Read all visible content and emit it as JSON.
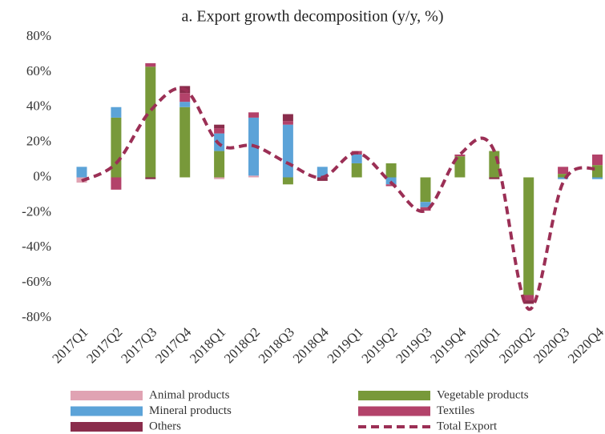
{
  "chart_data": {
    "type": "bar",
    "stacked": true,
    "title": "a. Export growth decomposition (y/y, %)",
    "categories": [
      "2017Q1",
      "2017Q2",
      "2017Q3",
      "2017Q4",
      "2018Q1",
      "2018Q2",
      "2018Q3",
      "2018Q4",
      "2019Q1",
      "2019Q2",
      "2019Q3",
      "2019Q4",
      "2020Q1",
      "2020Q2",
      "2020Q3",
      "2020Q4"
    ],
    "series": [
      {
        "name": "Animal products",
        "color": "#e0a3b3",
        "values": [
          -3,
          0,
          0,
          0,
          -1,
          1,
          0,
          0,
          0,
          0,
          0,
          0,
          0,
          0,
          0,
          0
        ]
      },
      {
        "name": "Vegetable products",
        "color": "#78993a",
        "values": [
          0,
          34,
          63,
          40,
          15,
          0,
          -4,
          0,
          8,
          8,
          -14,
          12,
          15,
          -67,
          2,
          7
        ]
      },
      {
        "name": "Mineral products",
        "color": "#5ca3d8",
        "values": [
          6,
          6,
          0,
          3,
          10,
          33,
          30,
          6,
          5,
          -4,
          -3,
          0,
          0,
          0,
          -1,
          -1
        ]
      },
      {
        "name": "Textiles",
        "color": "#b3426a",
        "values": [
          0,
          -7,
          2,
          5,
          3,
          3,
          2,
          0,
          2,
          -1,
          -2,
          1,
          0,
          -3,
          4,
          6
        ]
      },
      {
        "name": "Others",
        "color": "#8a2d4c",
        "values": [
          0,
          0,
          -1,
          4,
          2,
          0,
          4,
          -2,
          0,
          0,
          0,
          0,
          -1,
          -2,
          0,
          0
        ]
      },
      {
        "name": "Total Export",
        "type": "line",
        "dashed": true,
        "color": "#9b2f55",
        "values": [
          -2,
          8,
          38,
          50,
          19,
          18,
          8,
          0,
          14,
          -3,
          -19,
          13,
          15,
          -75,
          -3,
          5
        ]
      }
    ],
    "ylim": [
      -80,
      80
    ],
    "yticks": [
      {
        "value": 80,
        "label": "80%"
      },
      {
        "value": 60,
        "label": "60%"
      },
      {
        "value": 40,
        "label": "40%"
      },
      {
        "value": 20,
        "label": "20%"
      },
      {
        "value": 0,
        "label": "0%"
      },
      {
        "value": -20,
        "label": "-20%"
      },
      {
        "value": -40,
        "label": "-40%"
      },
      {
        "value": -60,
        "label": "-60%"
      },
      {
        "value": -80,
        "label": "-80%"
      }
    ],
    "grid": false,
    "legend": "bottom"
  }
}
